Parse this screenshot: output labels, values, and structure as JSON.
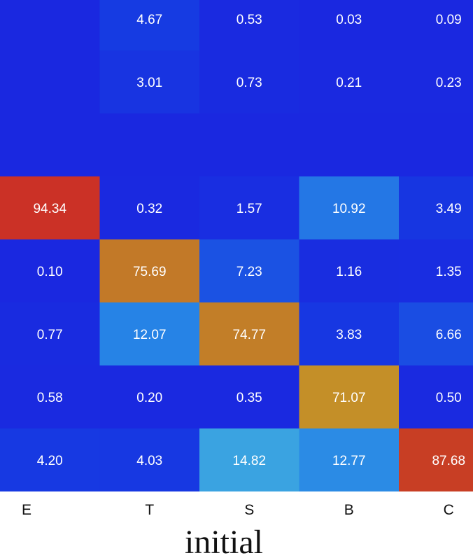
{
  "chart_data": {
    "type": "heatmap",
    "title": "",
    "xlabel": "initial",
    "ylabel": "",
    "x_categories": [
      "E",
      "T",
      "S",
      "B",
      "C"
    ],
    "rows": [
      [
        null,
        4.67,
        0.53,
        0.03,
        0.09
      ],
      [
        null,
        3.01,
        0.73,
        0.21,
        0.23
      ],
      [
        null,
        null,
        null,
        null,
        null
      ],
      [
        94.34,
        0.32,
        1.57,
        10.92,
        3.49
      ],
      [
        0.1,
        75.69,
        7.23,
        1.16,
        1.35
      ],
      [
        0.77,
        12.07,
        74.77,
        3.83,
        6.66
      ],
      [
        0.58,
        0.2,
        0.35,
        71.07,
        0.5
      ],
      [
        4.2,
        4.03,
        14.82,
        12.77,
        87.68
      ]
    ],
    "row_labels": [
      [
        "",
        "4.67",
        "0.53",
        "0.03",
        "0.09"
      ],
      [
        "",
        "3.01",
        "0.73",
        "0.21",
        "0.23"
      ],
      [
        "",
        "",
        "",
        "",
        ""
      ],
      [
        "94.34",
        "0.32",
        "1.57",
        "10.92",
        "3.49"
      ],
      [
        "0.10",
        "75.69",
        "7.23",
        "1.16",
        "1.35"
      ],
      [
        "0.77",
        "12.07",
        "74.77",
        "3.83",
        "6.66"
      ],
      [
        "0.58",
        "0.20",
        "0.35",
        "71.07",
        "0.50"
      ],
      [
        "4.20",
        "4.03",
        "14.82",
        "12.77",
        "87.68"
      ]
    ],
    "value_range": [
      0,
      100
    ],
    "colormap": "jet",
    "background_color": "#1a28e0",
    "grid": false
  }
}
